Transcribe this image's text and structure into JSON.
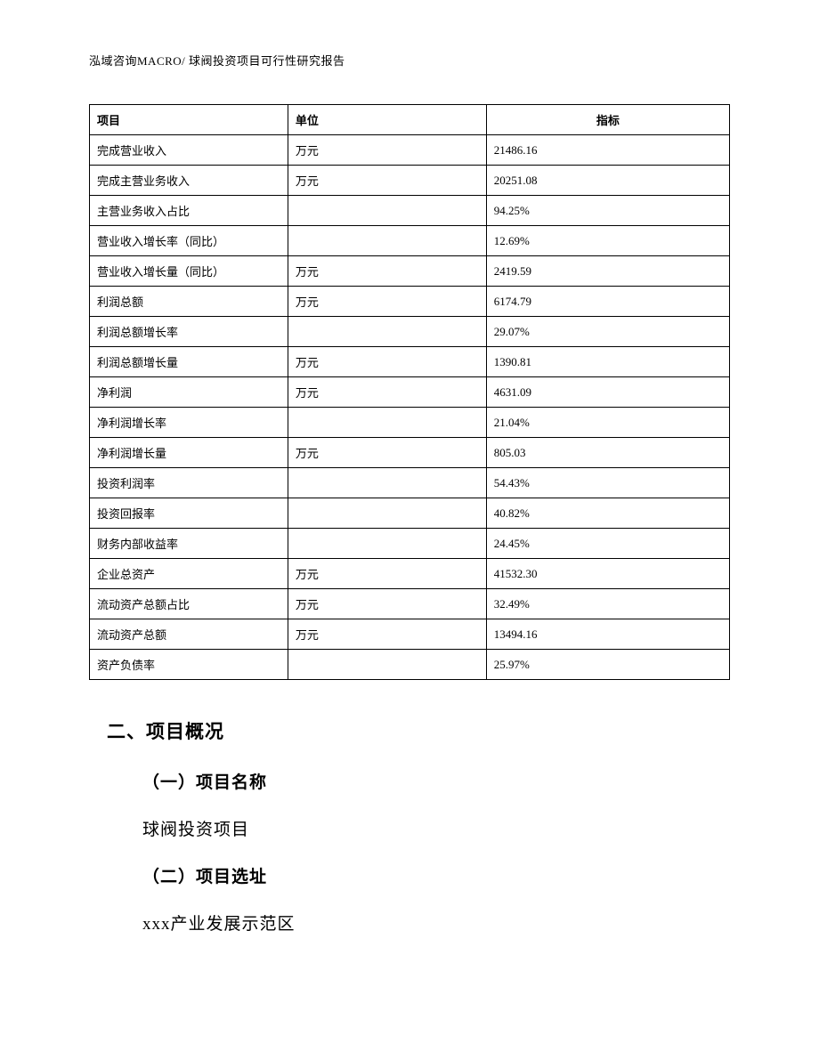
{
  "header": {
    "text": "泓域咨询MACRO/ 球阀投资项目可行性研究报告"
  },
  "table": {
    "type": "table",
    "columns": [
      "项目",
      "单位",
      "指标"
    ],
    "column_widths": [
      "31%",
      "31%",
      "38%"
    ],
    "header_align": [
      "left",
      "left",
      "center"
    ],
    "cell_align": [
      "left",
      "left",
      "left"
    ],
    "border_color": "#000000",
    "background_color": "#ffffff",
    "font_size": 13,
    "rows": [
      {
        "item": "完成营业收入",
        "unit": "万元",
        "value": "21486.16"
      },
      {
        "item": "完成主营业务收入",
        "unit": "万元",
        "value": "20251.08"
      },
      {
        "item": "主营业务收入占比",
        "unit": "",
        "value": "94.25%"
      },
      {
        "item": "营业收入增长率（同比）",
        "unit": "",
        "value": "12.69%"
      },
      {
        "item": "营业收入增长量（同比）",
        "unit": "万元",
        "value": "2419.59"
      },
      {
        "item": "利润总额",
        "unit": "万元",
        "value": "6174.79"
      },
      {
        "item": "利润总额增长率",
        "unit": "",
        "value": "29.07%"
      },
      {
        "item": "利润总额增长量",
        "unit": "万元",
        "value": "1390.81"
      },
      {
        "item": "净利润",
        "unit": "万元",
        "value": "4631.09"
      },
      {
        "item": "净利润增长率",
        "unit": "",
        "value": "21.04%"
      },
      {
        "item": "净利润增长量",
        "unit": "万元",
        "value": "805.03"
      },
      {
        "item": "投资利润率",
        "unit": "",
        "value": "54.43%"
      },
      {
        "item": "投资回报率",
        "unit": "",
        "value": "40.82%"
      },
      {
        "item": "财务内部收益率",
        "unit": "",
        "value": "24.45%"
      },
      {
        "item": "企业总资产",
        "unit": "万元",
        "value": "41532.30"
      },
      {
        "item": "流动资产总额占比",
        "unit": "万元",
        "value": "32.49%"
      },
      {
        "item": "流动资产总额",
        "unit": "万元",
        "value": "13494.16"
      },
      {
        "item": "资产负债率",
        "unit": "",
        "value": "25.97%"
      }
    ]
  },
  "sections": {
    "section2_title": "二、项目概况",
    "sub1_title": "（一）项目名称",
    "sub1_body": "球阀投资项目",
    "sub2_title": "（二）项目选址",
    "sub2_body": "xxx产业发展示范区"
  },
  "style": {
    "page_bg": "#ffffff",
    "text_color": "#000000",
    "heading_font": "SimHei",
    "body_font": "SimSun",
    "heading_fontsize": 21,
    "subheading_fontsize": 19,
    "body_fontsize": 19
  }
}
